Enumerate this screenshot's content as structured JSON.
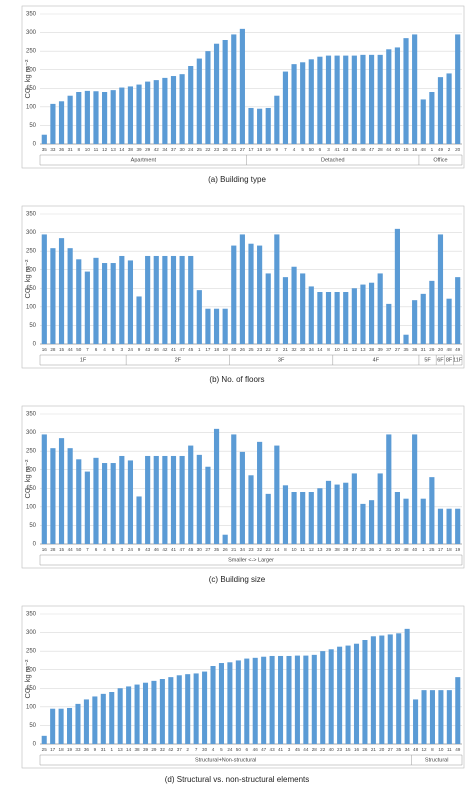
{
  "chart_data": [
    {
      "type": "bar",
      "caption": "(a) Building type",
      "ylabel": "CO₂ kg m⁻²",
      "color": "#5b9bd5",
      "grid": true,
      "ylim": [
        0,
        350
      ],
      "yticks": [
        0,
        50,
        100,
        150,
        200,
        250,
        300,
        350
      ],
      "categories": [
        "35",
        "33",
        "36",
        "31",
        "8",
        "10",
        "11",
        "12",
        "13",
        "14",
        "38",
        "39",
        "29",
        "42",
        "34",
        "37",
        "30",
        "24",
        "25",
        "22",
        "23",
        "26",
        "21",
        "27",
        "17",
        "18",
        "19",
        "9",
        "7",
        "4",
        "5",
        "50",
        "6",
        "3",
        "41",
        "43",
        "45",
        "46",
        "47",
        "28",
        "44",
        "40",
        "15",
        "16",
        "48",
        "1",
        "49",
        "2",
        "20"
      ],
      "values": [
        25,
        108,
        115,
        130,
        140,
        143,
        142,
        140,
        145,
        152,
        155,
        160,
        168,
        172,
        178,
        183,
        188,
        210,
        230,
        250,
        270,
        280,
        295,
        310,
        97,
        95,
        97,
        130,
        195,
        215,
        220,
        228,
        235,
        238,
        238,
        238,
        238,
        240,
        240,
        240,
        255,
        260,
        285,
        295,
        120,
        140,
        180,
        190,
        295
      ],
      "groups": [
        {
          "label": "Apartment",
          "size": 24
        },
        {
          "label": "Detached",
          "size": 20
        },
        {
          "label": "Office",
          "size": 5
        }
      ]
    },
    {
      "type": "bar",
      "caption": "(b) No. of floors",
      "ylabel": "CO₂ kg m⁻²",
      "color": "#5b9bd5",
      "grid": true,
      "ylim": [
        0,
        350
      ],
      "yticks": [
        0,
        50,
        100,
        150,
        200,
        250,
        300,
        350
      ],
      "categories": [
        "16",
        "28",
        "15",
        "44",
        "50",
        "7",
        "6",
        "4",
        "5",
        "3",
        "24",
        "9",
        "43",
        "46",
        "42",
        "41",
        "47",
        "45",
        "1",
        "17",
        "18",
        "19",
        "40",
        "26",
        "25",
        "23",
        "22",
        "2",
        "21",
        "32",
        "30",
        "34",
        "14",
        "8",
        "10",
        "11",
        "12",
        "13",
        "38",
        "39",
        "37",
        "27",
        "35",
        "36",
        "31",
        "29",
        "20",
        "48",
        "49"
      ],
      "values": [
        295,
        258,
        285,
        258,
        228,
        195,
        232,
        218,
        218,
        237,
        225,
        128,
        237,
        237,
        237,
        237,
        237,
        237,
        145,
        95,
        95,
        95,
        265,
        295,
        270,
        265,
        190,
        295,
        180,
        208,
        190,
        155,
        140,
        140,
        140,
        140,
        150,
        160,
        165,
        190,
        108,
        310,
        25,
        118,
        135,
        170,
        295,
        122,
        180
      ],
      "groups": [
        {
          "label": "1F",
          "size": 10
        },
        {
          "label": "2F",
          "size": 12
        },
        {
          "label": "3F",
          "size": 12
        },
        {
          "label": "4F",
          "size": 10
        },
        {
          "label": "5F",
          "size": 2
        },
        {
          "label": "6F",
          "size": 1
        },
        {
          "label": "8F",
          "size": 1
        },
        {
          "label": "11F",
          "size": 1
        }
      ]
    },
    {
      "type": "bar",
      "caption": "(c) Building size",
      "ylabel": "CO₂ kg m⁻²",
      "color": "#5b9bd5",
      "grid": true,
      "ylim": [
        0,
        350
      ],
      "yticks": [
        0,
        50,
        100,
        150,
        200,
        250,
        300,
        350
      ],
      "categories": [
        "16",
        "28",
        "15",
        "44",
        "50",
        "7",
        "6",
        "4",
        "5",
        "3",
        "24",
        "9",
        "43",
        "46",
        "42",
        "41",
        "47",
        "45",
        "30",
        "27",
        "35",
        "26",
        "21",
        "34",
        "23",
        "32",
        "22",
        "14",
        "8",
        "10",
        "11",
        "12",
        "13",
        "29",
        "38",
        "39",
        "37",
        "33",
        "36",
        "2",
        "31",
        "20",
        "48",
        "40",
        "1",
        "25",
        "17",
        "18",
        "19"
      ],
      "values": [
        295,
        258,
        285,
        258,
        228,
        195,
        232,
        218,
        218,
        237,
        225,
        128,
        237,
        237,
        237,
        237,
        237,
        265,
        240,
        208,
        310,
        25,
        295,
        248,
        185,
        275,
        135,
        265,
        158,
        140,
        140,
        140,
        150,
        170,
        160,
        165,
        190,
        108,
        118,
        190,
        295,
        140,
        122,
        295,
        122,
        180,
        95,
        95,
        95
      ],
      "groups": [
        {
          "label": "Smaller <-> Larger",
          "size": 49
        }
      ]
    },
    {
      "type": "bar",
      "caption": "(d) Structural vs. non-structural elements",
      "ylabel": "CO₂ kg m⁻²",
      "color": "#5b9bd5",
      "grid": true,
      "ylim": [
        0,
        350
      ],
      "yticks": [
        0,
        50,
        100,
        150,
        200,
        250,
        300,
        350
      ],
      "categories": [
        "25",
        "17",
        "18",
        "19",
        "33",
        "36",
        "9",
        "31",
        "1",
        "13",
        "14",
        "38",
        "39",
        "29",
        "32",
        "42",
        "37",
        "2",
        "7",
        "30",
        "4",
        "5",
        "24",
        "50",
        "6",
        "46",
        "47",
        "43",
        "41",
        "3",
        "45",
        "44",
        "28",
        "22",
        "40",
        "23",
        "15",
        "16",
        "26",
        "21",
        "20",
        "27",
        "35",
        "34",
        "48",
        "12",
        "8",
        "10",
        "11",
        "49"
      ],
      "values": [
        22,
        95,
        95,
        97,
        108,
        120,
        128,
        135,
        140,
        150,
        155,
        160,
        165,
        170,
        175,
        180,
        185,
        188,
        190,
        195,
        210,
        218,
        220,
        225,
        230,
        232,
        235,
        237,
        237,
        237,
        238,
        238,
        240,
        250,
        255,
        262,
        265,
        270,
        280,
        290,
        292,
        295,
        298,
        310,
        120,
        145,
        145,
        145,
        145,
        180
      ],
      "groups": [
        {
          "label": "Structural+Non-structural",
          "size": 44
        },
        {
          "label": "Structural",
          "size": 6
        }
      ]
    }
  ]
}
